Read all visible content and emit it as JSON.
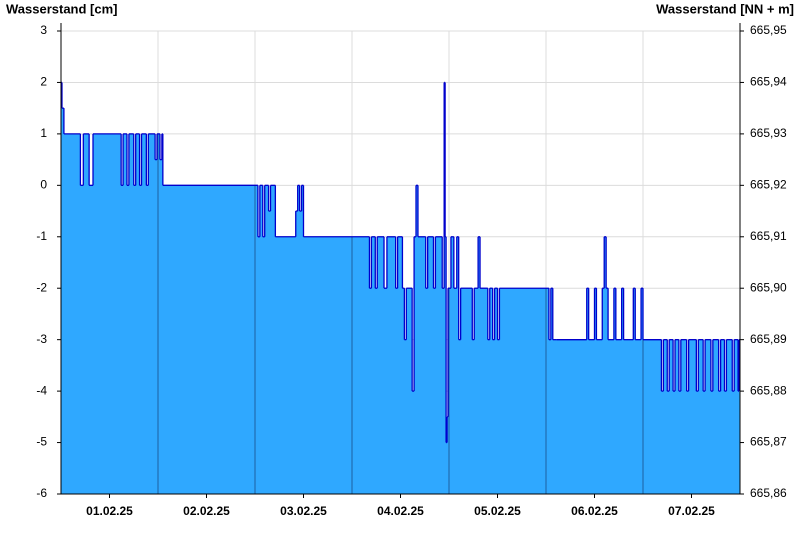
{
  "chart_data": {
    "type": "step-area",
    "y_axis_label": "Wasserstand [cm]",
    "y2_axis_label": "Wasserstand [NN + m]",
    "xlim": [
      0,
      7
    ],
    "xticks": [
      {
        "value": 0.5,
        "label": "01.02.25"
      },
      {
        "value": 1.5,
        "label": "02.02.25"
      },
      {
        "value": 2.5,
        "label": "03.02.25"
      },
      {
        "value": 3.5,
        "label": "04.02.25"
      },
      {
        "value": 4.5,
        "label": "05.02.25"
      },
      {
        "value": 5.5,
        "label": "06.02.25"
      },
      {
        "value": 6.5,
        "label": "07.02.25"
      }
    ],
    "xgrid": [
      1,
      2,
      3,
      4,
      5,
      6
    ],
    "ylim": [
      -6,
      3
    ],
    "yticks": [
      -6,
      -5,
      -4,
      -3,
      -2,
      -1,
      0,
      1,
      2,
      3
    ],
    "y2lim": [
      665.86,
      665.95
    ],
    "y2ticks": [
      {
        "value": 665.86,
        "label": "665,86"
      },
      {
        "value": 665.87,
        "label": "665,87"
      },
      {
        "value": 665.88,
        "label": "665,88"
      },
      {
        "value": 665.89,
        "label": "665,89"
      },
      {
        "value": 665.9,
        "label": "665,90"
      },
      {
        "value": 665.91,
        "label": "665,91"
      },
      {
        "value": 665.92,
        "label": "665,92"
      },
      {
        "value": 665.93,
        "label": "665,93"
      },
      {
        "value": 665.94,
        "label": "665,94"
      },
      {
        "value": 665.95,
        "label": "665,95"
      }
    ],
    "grid": true,
    "fill_color": "#2fa8ff",
    "line_color": "#0000cc",
    "series": [
      {
        "name": "Wasserstand",
        "x": [
          0,
          0.01,
          0.03,
          0.2,
          0.23,
          0.29,
          0.33,
          0.62,
          0.64,
          0.68,
          0.7,
          0.75,
          0.77,
          0.81,
          0.83,
          0.88,
          0.9,
          0.97,
          0.99,
          1.02,
          1.04,
          1.05,
          2.03,
          2.05,
          2.08,
          2.1,
          2.14,
          2.16,
          2.21,
          2.42,
          2.44,
          2.46,
          2.48,
          2.5,
          3.18,
          3.2,
          3.24,
          3.26,
          3.33,
          3.36,
          3.45,
          3.47,
          3.52,
          3.54,
          3.56,
          3.62,
          3.64,
          3.66,
          3.68,
          3.76,
          3.78,
          3.84,
          3.86,
          3.93,
          3.95,
          3.96,
          3.97,
          3.98,
          3.99,
          4.02,
          4.05,
          4.08,
          4.1,
          4.12,
          4.24,
          4.26,
          4.3,
          4.32,
          4.4,
          4.42,
          4.45,
          4.47,
          4.5,
          4.52,
          5.03,
          5.05,
          5.07,
          5.11,
          5.42,
          5.44,
          5.5,
          5.52,
          5.58,
          5.6,
          5.62,
          5.64,
          5.7,
          5.72,
          5.78,
          5.8,
          5.9,
          5.92,
          5.98,
          6.0,
          6.19,
          6.21,
          6.25,
          6.27,
          6.31,
          6.33,
          6.37,
          6.39,
          6.45,
          6.47,
          6.55,
          6.57,
          6.62,
          6.64,
          6.7,
          6.72,
          6.78,
          6.8,
          6.84,
          6.86,
          6.92,
          6.94,
          6.98,
          6.99
        ],
        "values": [
          2,
          1.5,
          1,
          0,
          1,
          0,
          1,
          0,
          1,
          0,
          1,
          0,
          1,
          0,
          1,
          0,
          1,
          0.5,
          1,
          0.5,
          1,
          0,
          -1,
          0,
          -1,
          0,
          -0.5,
          0,
          -1,
          -0.5,
          0,
          -0.5,
          0,
          -1,
          -2,
          -1,
          -2,
          -1,
          -2,
          -1,
          -2,
          -1,
          -2,
          -3,
          -2,
          -4,
          -1,
          0,
          -1,
          -2,
          -1,
          -2,
          -1,
          -2,
          2,
          -1,
          -5,
          -4.5,
          -2,
          -1,
          -2,
          -1,
          -3,
          -2,
          -3,
          -2,
          -1,
          -2,
          -3,
          -2,
          -3,
          -2,
          -3,
          -2,
          -3,
          -2,
          -3,
          -3,
          -2,
          -3,
          -2,
          -3,
          -2,
          -1,
          -2,
          -3,
          -2,
          -3,
          -2,
          -3,
          -2,
          -3,
          -2,
          -3,
          -4,
          -3,
          -4,
          -3,
          -4,
          -3,
          -4,
          -3,
          -4,
          -3,
          -4,
          -3,
          -4,
          -3,
          -4,
          -3,
          -4,
          -3,
          -4,
          -3,
          -4,
          -3,
          -4,
          -3
        ]
      }
    ]
  }
}
